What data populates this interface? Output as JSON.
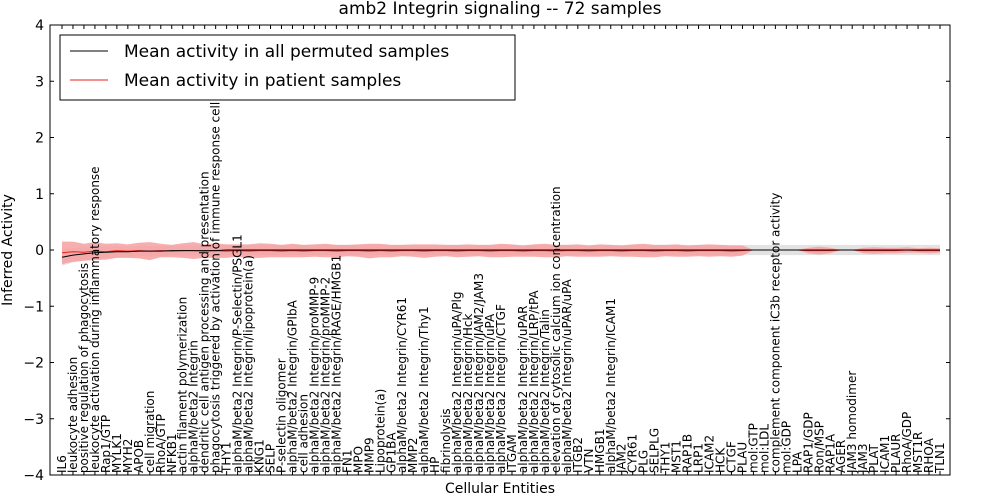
{
  "chart_data": {
    "type": "line",
    "title": "amb2 Integrin signaling -- 72 samples",
    "xlabel": "Cellular Entities",
    "ylabel": "Inferred Activity",
    "ylim": [
      -4,
      4
    ],
    "yticks": [
      "4",
      "3",
      "2",
      "1",
      "0",
      "−1",
      "−2",
      "−3",
      "−4"
    ],
    "legend_position": "top-left",
    "grid": false,
    "colors": {
      "permuted_mean": "#000000",
      "patient_mean": "#e8221c",
      "patient_band": "#f7a0a0",
      "permuted_band": "#dcdcdc"
    },
    "categories": [
      "IL6",
      "leukocyte adhesion",
      "positive regulation of phagocytosis",
      "leukocyte activation during inflammatory response",
      "Rap1/GTP",
      "MYLK1",
      "MYH2",
      "APOB",
      "cell migration",
      "RhoA/GTP",
      "NFKB1",
      "actin filament polymerization",
      "alphaM/beta2 Integrin",
      "dendritic cell antigen processing and presentation",
      "phagocytosis triggered by activation of immune response cell surface",
      "THY1",
      "alphaM/beta2 Integrin/P-Selectin/PSGL1",
      "alphaM/beta2 Integrin/lipoprotein(a)",
      "KNG1",
      "SELP",
      "P-selectin oligomer",
      "alphaM/beta2 Integrin/GPIbA",
      "cell adhesion",
      "alphaM/beta2 Integrin/proMMP-9",
      "alphaM/beta2 Integrin/proMMP-2",
      "alphaM/beta2 Integrin/RAGE/HMGB1",
      "FN1",
      "MPO",
      "MMP9",
      "Lipoprotein(a)",
      "GP1BA",
      "alphaM/beta2 Integrin/CYR61",
      "MMP2",
      "alphaM/beta2 Integrin/Thy1",
      "HP",
      "fibrinolysis",
      "alphaM/beta2 Integrin/uPA/Plg",
      "alphaM/beta2 Integrin/Hck",
      "alphaM/beta2 Integrin/JAM2/JAM3",
      "alphaM/beta2 Integrin/uPA",
      "alphaM/beta2 Integrin/CTGF",
      "ITGAM",
      "alphaM/beta2 Integrin/uPAR",
      "alphaM/beta2 Integrin/LRP/tPA",
      "alphaM/beta2 Integrin/Talin",
      "elevation of cytosolic calcium ion concentration",
      "alphaM/beta2 Integrin/uPAR/uPA",
      "ITGB2",
      "VTN",
      "HMGB1",
      "alphaM/beta2 Integrin/ICAM1",
      "JAM2",
      "CYR61",
      "PLG",
      "SELPLG",
      "THY1",
      "MST1",
      "RAP1B",
      "LRP1",
      "ICAM2",
      "HCK",
      "CTGF",
      "PLAU",
      "mol:GTP",
      "mol:LDL",
      "complement component iC3b receptor activity",
      "mol:GDP",
      "LPA",
      "RAP1/GDP",
      "Ron/MSP",
      "RAP1A",
      "AGER",
      "JAM3 homodimer",
      "JAM3",
      "PLAT",
      "ICAM1",
      "PLAUR",
      "RhoA/GDP",
      "MST1R",
      "RHOA",
      "TLN1"
    ],
    "series": [
      {
        "name": "Mean activity in all permuted samples",
        "values": [
          -0.13,
          -0.09,
          -0.07,
          -0.05,
          -0.04,
          -0.03,
          -0.03,
          -0.02,
          -0.02,
          -0.02,
          -0.01,
          -0.01,
          -0.01,
          -0.01,
          -0.01,
          0,
          0,
          0,
          0,
          0,
          0,
          0,
          0,
          0,
          0,
          0,
          0,
          0,
          0,
          0,
          0,
          0,
          0,
          0,
          0,
          0,
          0,
          0,
          0,
          0,
          0,
          0,
          0,
          0,
          0,
          0,
          0,
          0,
          0,
          0,
          0,
          0,
          0,
          0,
          0,
          0,
          0,
          0,
          0,
          0,
          0,
          0,
          0,
          0,
          0,
          0,
          0,
          0,
          0,
          0,
          0,
          0,
          0,
          0,
          0,
          0,
          0,
          0,
          0,
          0,
          0
        ],
        "band": [
          0.15,
          0.13,
          0.12,
          0.11,
          0.1,
          0.1,
          0.09,
          0.09,
          0.09,
          0.09,
          0.09,
          0.09,
          0.09,
          0.09,
          0.09,
          0.09,
          0.09,
          0.09,
          0.09,
          0.09,
          0.09,
          0.09,
          0.09,
          0.09,
          0.09,
          0.09,
          0.09,
          0.09,
          0.09,
          0.09,
          0.09,
          0.09,
          0.09,
          0.09,
          0.09,
          0.09,
          0.09,
          0.09,
          0.09,
          0.09,
          0.09,
          0.09,
          0.09,
          0.09,
          0.09,
          0.09,
          0.09,
          0.09,
          0.09,
          0.09,
          0.09,
          0.09,
          0.09,
          0.09,
          0.09,
          0.09,
          0.09,
          0.09,
          0.09,
          0.09,
          0.09,
          0.09,
          0.09,
          0.09,
          0.09,
          0.09,
          0.09,
          0.09,
          0.09,
          0.09,
          0.09,
          0.09,
          0.09,
          0.09,
          0.09,
          0.09,
          0.09,
          0.09,
          0.09,
          0.09,
          0.09
        ]
      },
      {
        "name": "Mean activity in patient samples",
        "values": [
          -0.05,
          -0.03,
          -0.04,
          -0.02,
          -0.03,
          -0.01,
          -0.02,
          -0.01,
          -0.02,
          -0.01,
          -0.02,
          -0.01,
          -0.01,
          -0.02,
          -0.01,
          -0.02,
          -0.01,
          -0.02,
          -0.01,
          -0.01,
          -0.02,
          -0.01,
          -0.02,
          -0.01,
          -0.01,
          -0.02,
          -0.01,
          -0.01,
          -0.02,
          -0.01,
          -0.02,
          -0.01,
          -0.01,
          -0.02,
          -0.01,
          -0.01,
          -0.02,
          -0.01,
          -0.01,
          -0.02,
          -0.01,
          -0.01,
          -0.02,
          -0.01,
          -0.01,
          -0.02,
          -0.01,
          -0.01,
          -0.02,
          -0.01,
          -0.01,
          -0.02,
          -0.01,
          -0.01,
          -0.02,
          -0.01,
          -0.01,
          -0.02,
          -0.01,
          -0.01,
          -0.01,
          -0.02,
          -0.01,
          0,
          0,
          0,
          0,
          0,
          -0.01,
          -0.01,
          -0.01,
          0,
          0,
          -0.01,
          -0.01,
          -0.01,
          -0.01,
          0,
          -0.01,
          -0.01,
          -0.01
        ],
        "band": [
          0.2,
          0.18,
          0.15,
          0.16,
          0.14,
          0.13,
          0.12,
          0.14,
          0.16,
          0.12,
          0.11,
          0.13,
          0.15,
          0.12,
          0.13,
          0.12,
          0.11,
          0.12,
          0.13,
          0.12,
          0.11,
          0.12,
          0.11,
          0.11,
          0.12,
          0.11,
          0.1,
          0.11,
          0.13,
          0.12,
          0.11,
          0.1,
          0.11,
          0.12,
          0.11,
          0.1,
          0.11,
          0.11,
          0.1,
          0.11,
          0.12,
          0.11,
          0.1,
          0.11,
          0.12,
          0.11,
          0.1,
          0.11,
          0.1,
          0.11,
          0.1,
          0.1,
          0.11,
          0.12,
          0.11,
          0.1,
          0.11,
          0.1,
          0.1,
          0.11,
          0.1,
          0.1,
          0.09,
          0,
          0,
          0,
          0,
          0,
          0.05,
          0.07,
          0.05,
          0,
          0,
          0.05,
          0.06,
          0.05,
          0.05,
          0.05,
          0.04,
          0.05,
          0.04
        ]
      }
    ]
  }
}
